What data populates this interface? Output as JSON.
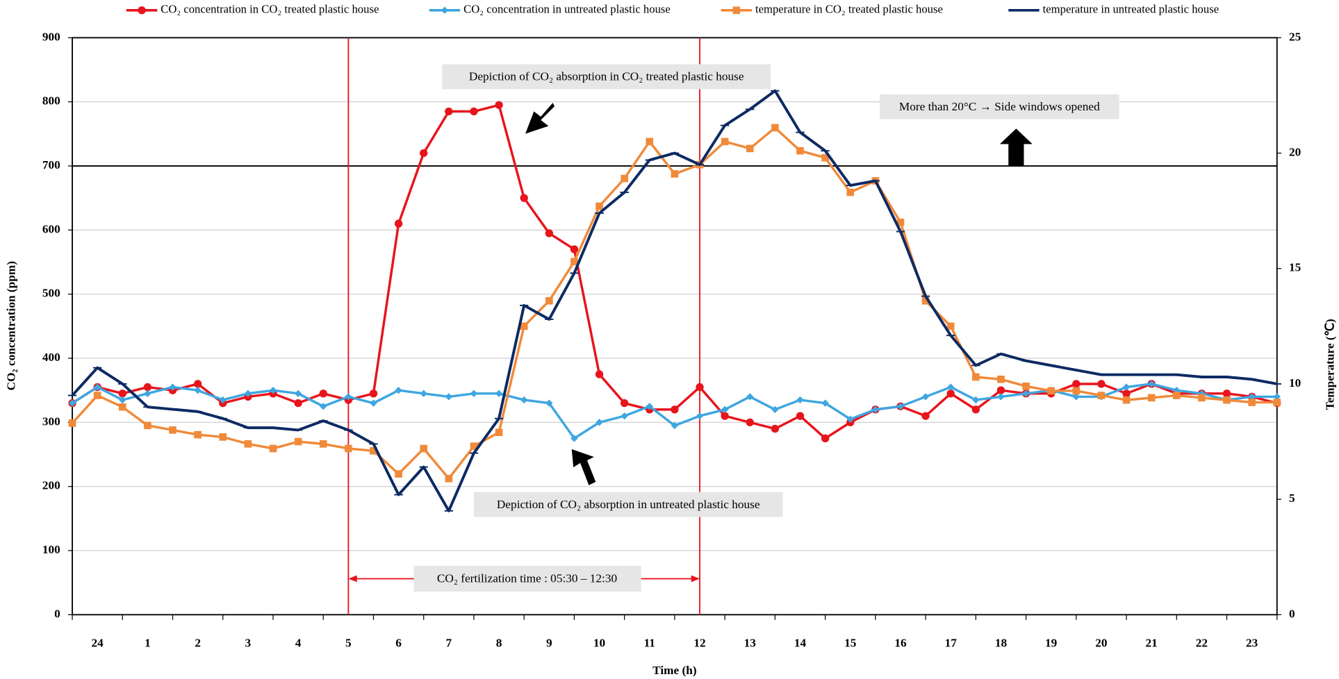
{
  "chart_data": {
    "type": "line",
    "xlabel": "Time (h)",
    "ylabel": "CO₂ concentration (ppm)",
    "y2label": "Temperature (℃)",
    "categories": [
      "24",
      "1",
      "2",
      "3",
      "4",
      "5",
      "6",
      "7",
      "8",
      "9",
      "10",
      "11",
      "12",
      "13",
      "14",
      "15",
      "16",
      "17",
      "18",
      "19",
      "20",
      "21",
      "22",
      "23"
    ],
    "x": [
      0,
      0.5,
      1,
      1.5,
      2,
      2.5,
      3,
      3.5,
      4,
      4.5,
      5,
      5.5,
      6,
      6.5,
      7,
      7.5,
      8,
      8.5,
      9,
      9.5,
      10,
      10.5,
      11,
      11.5,
      12,
      12.5,
      13,
      13.5,
      14,
      14.5,
      15,
      15.5,
      16,
      16.5,
      17,
      17.5,
      18,
      18.5,
      19,
      19.5,
      20,
      20.5,
      21,
      21.5,
      22,
      22.5,
      23,
      23.5,
      24
    ],
    "xlim": [
      0,
      24
    ],
    "ylim": [
      0,
      900
    ],
    "yticks": [
      0,
      100,
      200,
      300,
      400,
      500,
      600,
      700,
      800,
      900
    ],
    "y2lim": [
      0,
      25
    ],
    "y2ticks": [
      0,
      5,
      10,
      15,
      20,
      25
    ],
    "grid": true,
    "legend": "top",
    "series": [
      {
        "name": "CO₂ concentration in CO₂ treated plastic house",
        "color": "#e8141c",
        "marker": "circle",
        "values": [
          330,
          355,
          345,
          355,
          350,
          360,
          330,
          340,
          345,
          330,
          345,
          335,
          345,
          610,
          720,
          785,
          785,
          795,
          650,
          595,
          570,
          375,
          330,
          320,
          320,
          355,
          310,
          300,
          290,
          310,
          275,
          300,
          320,
          325,
          310,
          345,
          320,
          350,
          345,
          345,
          360,
          360,
          345,
          360,
          345,
          345,
          345,
          340,
          330
        ]
      },
      {
        "name": "CO₂ concentration in untreated plastic house",
        "color": "#3ea6e0",
        "marker": "diamond",
        "values": [
          330,
          355,
          335,
          345,
          355,
          350,
          335,
          345,
          350,
          345,
          325,
          340,
          330,
          350,
          345,
          340,
          345,
          345,
          335,
          330,
          275,
          300,
          310,
          325,
          295,
          310,
          320,
          340,
          320,
          335,
          330,
          305,
          320,
          325,
          340,
          355,
          335,
          340,
          345,
          350,
          340,
          340,
          355,
          360,
          350,
          345,
          335,
          340,
          340
        ]
      },
      {
        "name": "temperature in CO₂ treated plastic house",
        "color": "#f08a3a",
        "marker": "square",
        "axis": "y2",
        "values": [
          8.3,
          9.5,
          9.0,
          8.2,
          8.0,
          7.8,
          7.7,
          7.4,
          7.2,
          7.5,
          7.4,
          7.2,
          7.1,
          6.1,
          7.2,
          5.9,
          7.3,
          7.9,
          12.5,
          13.6,
          15.3,
          17.7,
          18.9,
          20.5,
          19.1,
          19.5,
          20.5,
          20.2,
          21.1,
          20.1,
          19.8,
          18.3,
          18.8,
          17.0,
          13.6,
          12.5,
          10.3,
          10.2,
          9.9,
          9.7,
          9.7,
          9.5,
          9.3,
          9.4,
          9.5,
          9.4,
          9.3,
          9.2,
          9.2
        ]
      },
      {
        "name": "temperature in untreated plastic house",
        "color": "#0d2a63",
        "marker": "dash",
        "axis": "y2",
        "values": [
          9.5,
          10.7,
          10.0,
          9.0,
          8.9,
          8.8,
          8.5,
          8.1,
          8.1,
          8.0,
          8.4,
          8.0,
          7.4,
          5.2,
          6.4,
          4.5,
          7.0,
          8.5,
          13.4,
          12.8,
          14.8,
          17.4,
          18.3,
          19.7,
          20.0,
          19.5,
          21.2,
          21.9,
          22.7,
          20.9,
          20.1,
          18.6,
          18.8,
          16.6,
          13.8,
          12.1,
          10.8,
          11.3,
          11.0,
          10.8,
          10.6,
          10.4,
          10.4,
          10.4,
          10.4,
          10.3,
          10.3,
          10.2,
          10.0
        ]
      }
    ],
    "reference_line": 700,
    "fertilization": {
      "label": "CO₂ fertilization time : 05:30 – 12:30",
      "start": 5.5,
      "end": 12.5
    },
    "annotations": [
      "Depiction of CO₂ absorption in CO₂ treated plastic house",
      "More than 20°C → Side windows opened",
      "Depiction of CO₂ absorption in untreated plastic house"
    ]
  }
}
